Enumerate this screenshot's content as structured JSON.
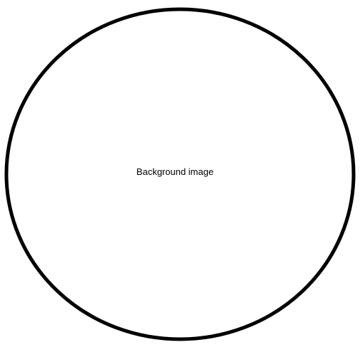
{
  "canvas": {
    "background_color": "#ffffff"
  },
  "circle": {
    "stroke_color": "#000000",
    "fill_color": "#ffffff",
    "label": "Background image"
  }
}
